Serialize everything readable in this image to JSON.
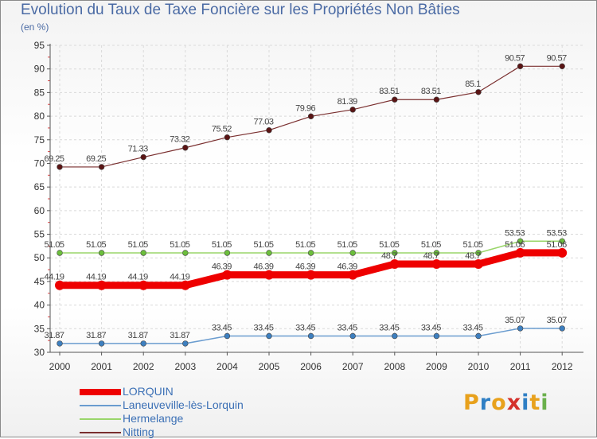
{
  "title": "Evolution du Taux de Taxe Foncière sur les Propriétés Non Bâties",
  "subtitle": "(en %)",
  "logo": {
    "letters": [
      "P",
      "r",
      "o",
      "x",
      "i",
      "t",
      "i"
    ],
    "colors": [
      "#e8a11c",
      "#2f7fc4",
      "#e8a11c",
      "#d4312b",
      "#2f7fc4",
      "#e8a11c",
      "#6ab04c"
    ]
  },
  "chart_data": {
    "type": "line",
    "x": [
      "2000",
      "2001",
      "2002",
      "2003",
      "2004",
      "2005",
      "2006",
      "2007",
      "2008",
      "2009",
      "2010",
      "2011",
      "2012"
    ],
    "ylim": [
      30,
      95
    ],
    "yticks": [
      30,
      35,
      40,
      45,
      50,
      55,
      60,
      65,
      70,
      75,
      80,
      85,
      90,
      95
    ],
    "grid": true,
    "legend_position": "bottom-left",
    "series": [
      {
        "name": "Nitting",
        "color": "#7a2f2f",
        "marker": "#5a1414",
        "width": 1.2,
        "values": [
          69.25,
          69.25,
          71.33,
          73.32,
          75.52,
          77.03,
          79.96,
          81.39,
          83.51,
          83.51,
          85.1,
          90.57,
          90.57
        ],
        "labels": [
          "69.25",
          "69.25",
          "71.33",
          "73.32",
          "75.52",
          "77.03",
          "79.96",
          "81.39",
          "83.51",
          "83.51",
          "85.1",
          "90.57",
          "90.57"
        ]
      },
      {
        "name": "Hermelange",
        "color": "#9ad66a",
        "marker": "#6cbf3c",
        "width": 1.5,
        "values": [
          51.05,
          51.05,
          51.05,
          51.05,
          51.05,
          51.05,
          51.05,
          51.05,
          51.05,
          51.05,
          51.05,
          53.53,
          53.53
        ],
        "labels": [
          "51.05",
          "51.05",
          "51.05",
          "51.05",
          "51.05",
          "51.05",
          "51.05",
          "51.05",
          "51.05",
          "51.05",
          "51.05",
          "53.53",
          "53.53"
        ]
      },
      {
        "name": "LORQUIN",
        "color": "#ee0000",
        "marker": "#ee0000",
        "width": 9,
        "values": [
          44.19,
          44.19,
          44.19,
          44.19,
          46.39,
          46.39,
          46.39,
          46.39,
          48.7,
          48.7,
          48.7,
          51.06,
          51.06
        ],
        "labels": [
          "44.19",
          "44.19",
          "44.19",
          "44.19",
          "46.39",
          "46.39",
          "46.39",
          "46.39",
          "48.7",
          "48.7",
          "48.7",
          "51.06",
          "51.06"
        ]
      },
      {
        "name": "Laneuveville-lès-Lorquin",
        "color": "#6a9ccf",
        "marker": "#3d7fbf",
        "width": 1.5,
        "values": [
          31.87,
          31.87,
          31.87,
          31.87,
          33.45,
          33.45,
          33.45,
          33.45,
          33.45,
          33.45,
          33.45,
          35.07,
          35.07
        ],
        "labels": [
          "31.87",
          "31.87",
          "31.87",
          "31.87",
          "33.45",
          "33.45",
          "33.45",
          "33.45",
          "33.45",
          "33.45",
          "33.45",
          "35.07",
          "35.07"
        ]
      }
    ],
    "legend": [
      {
        "name": "LORQUIN",
        "color": "#ee0000",
        "width": 8
      },
      {
        "name": "Laneuveville-lès-Lorquin",
        "color": "#6a9ccf",
        "width": 2
      },
      {
        "name": "Hermelange",
        "color": "#9ad66a",
        "width": 2
      },
      {
        "name": "Nitting",
        "color": "#7a2f2f",
        "width": 2
      }
    ]
  }
}
